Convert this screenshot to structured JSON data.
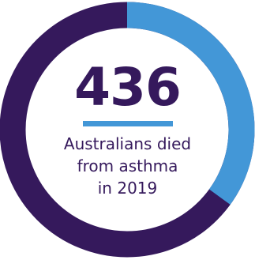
{
  "stat": {
    "value": "436",
    "caption_lines": [
      "Australians died",
      "from asthma",
      "in 2019"
    ]
  },
  "ring": {
    "highlight_fraction": 0.35
  },
  "colors": {
    "primary": "#35195c",
    "accent": "#4397d7",
    "background": "#ffffff"
  }
}
